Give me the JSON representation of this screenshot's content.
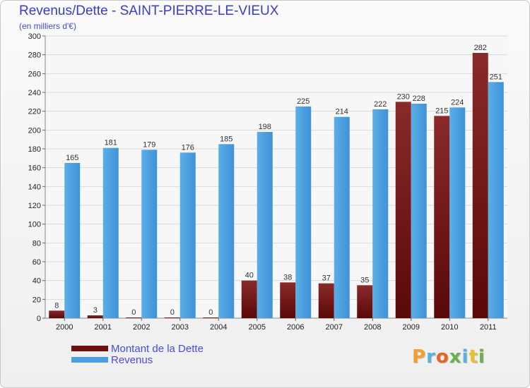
{
  "title": "Revenus/Dette - SAINT-PIERRE-LE-VIEUX",
  "subtitle": "(en milliers d'€)",
  "colors": {
    "dette": "#7a1a1a",
    "revenus": "#4a9fe0",
    "grid": "#d9d9d9",
    "axis_text": "#222222"
  },
  "chart_data": {
    "type": "bar",
    "categories": [
      "2000",
      "2001",
      "2002",
      "2003",
      "2004",
      "2005",
      "2006",
      "2007",
      "2008",
      "2009",
      "2010",
      "2011"
    ],
    "series": [
      {
        "name": "Montant de la Dette",
        "values": [
          8,
          3,
          0,
          0,
          0,
          40,
          38,
          37,
          35,
          230,
          215,
          282
        ]
      },
      {
        "name": "Revenus",
        "values": [
          165,
          181,
          179,
          176,
          185,
          198,
          225,
          214,
          222,
          228,
          224,
          251
        ]
      }
    ],
    "ylim": [
      0,
      300
    ],
    "yticks": [
      0,
      20,
      40,
      60,
      80,
      100,
      120,
      140,
      160,
      180,
      200,
      220,
      240,
      260,
      280,
      300
    ],
    "grid": true,
    "legend_position": "bottom-left"
  },
  "legend": {
    "items": [
      {
        "label": "Montant de la Dette",
        "color": "#6b0f0f"
      },
      {
        "label": "Revenus",
        "color": "#4a9fe0"
      }
    ]
  },
  "brand": {
    "letters": [
      {
        "ch": "P",
        "color": "#f0a030"
      },
      {
        "ch": "r",
        "color": "#5bb0e0"
      },
      {
        "ch": "o",
        "color": "#e86420"
      },
      {
        "ch": "x",
        "color": "#6ab04c"
      },
      {
        "ch": "i",
        "color": "#5bb0e0"
      },
      {
        "ch": "t",
        "color": "#e8c030"
      },
      {
        "ch": "i",
        "color": "#6ab04c"
      }
    ]
  }
}
